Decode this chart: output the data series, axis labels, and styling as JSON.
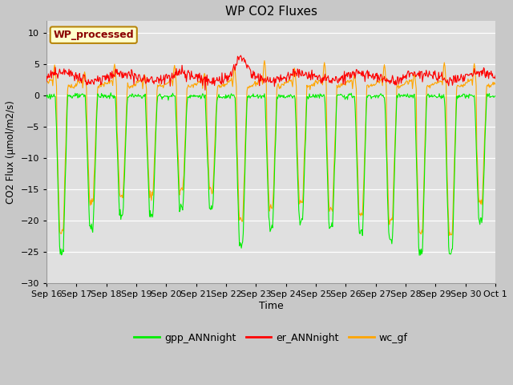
{
  "title": "WP CO2 Fluxes",
  "ylabel": "CO2 Flux (μmol/m2/s)",
  "xlabel": "Time",
  "annotation_text": "WP_processed",
  "annotation_color": "#8B0000",
  "annotation_bg": "#FFFFCC",
  "annotation_border": "#B8860B",
  "ylim": [
    -30,
    12
  ],
  "yticks": [
    -30,
    -25,
    -20,
    -15,
    -10,
    -5,
    0,
    5,
    10
  ],
  "bg_color": "#C8C8C8",
  "plot_bg": "#E0E0E0",
  "line_colors": {
    "gpp": "#00EE00",
    "er": "#FF0000",
    "wc": "#FFA500"
  },
  "legend_labels": [
    "gpp_ANNnight",
    "er_ANNnight",
    "wc_gf"
  ],
  "n_days": 15,
  "x_tick_labels": [
    "Sep 16",
    "Sep 17",
    "Sep 18",
    "Sep 19",
    "Sep 20",
    "Sep 21",
    "Sep 22",
    "Sep 23",
    "Sep 24",
    "Sep 25",
    "Sep 26",
    "Sep 27",
    "Sep 28",
    "Sep 29",
    "Sep 30",
    "Oct 1"
  ],
  "points_per_day": 48,
  "gpp_night_depths": [
    -25,
    -21,
    -19,
    -19,
    -18,
    -18,
    -24,
    -21,
    -20,
    -21,
    -22,
    -23,
    -25,
    -25,
    -20
  ],
  "wc_night_depths": [
    -22,
    -17,
    -16,
    -16,
    -15,
    -15,
    -20,
    -18,
    -17,
    -18,
    -19,
    -20,
    -22,
    -22,
    -17
  ],
  "er_base": 3.0,
  "er_spike_day": 6.5,
  "er_spike_val": 5.8
}
